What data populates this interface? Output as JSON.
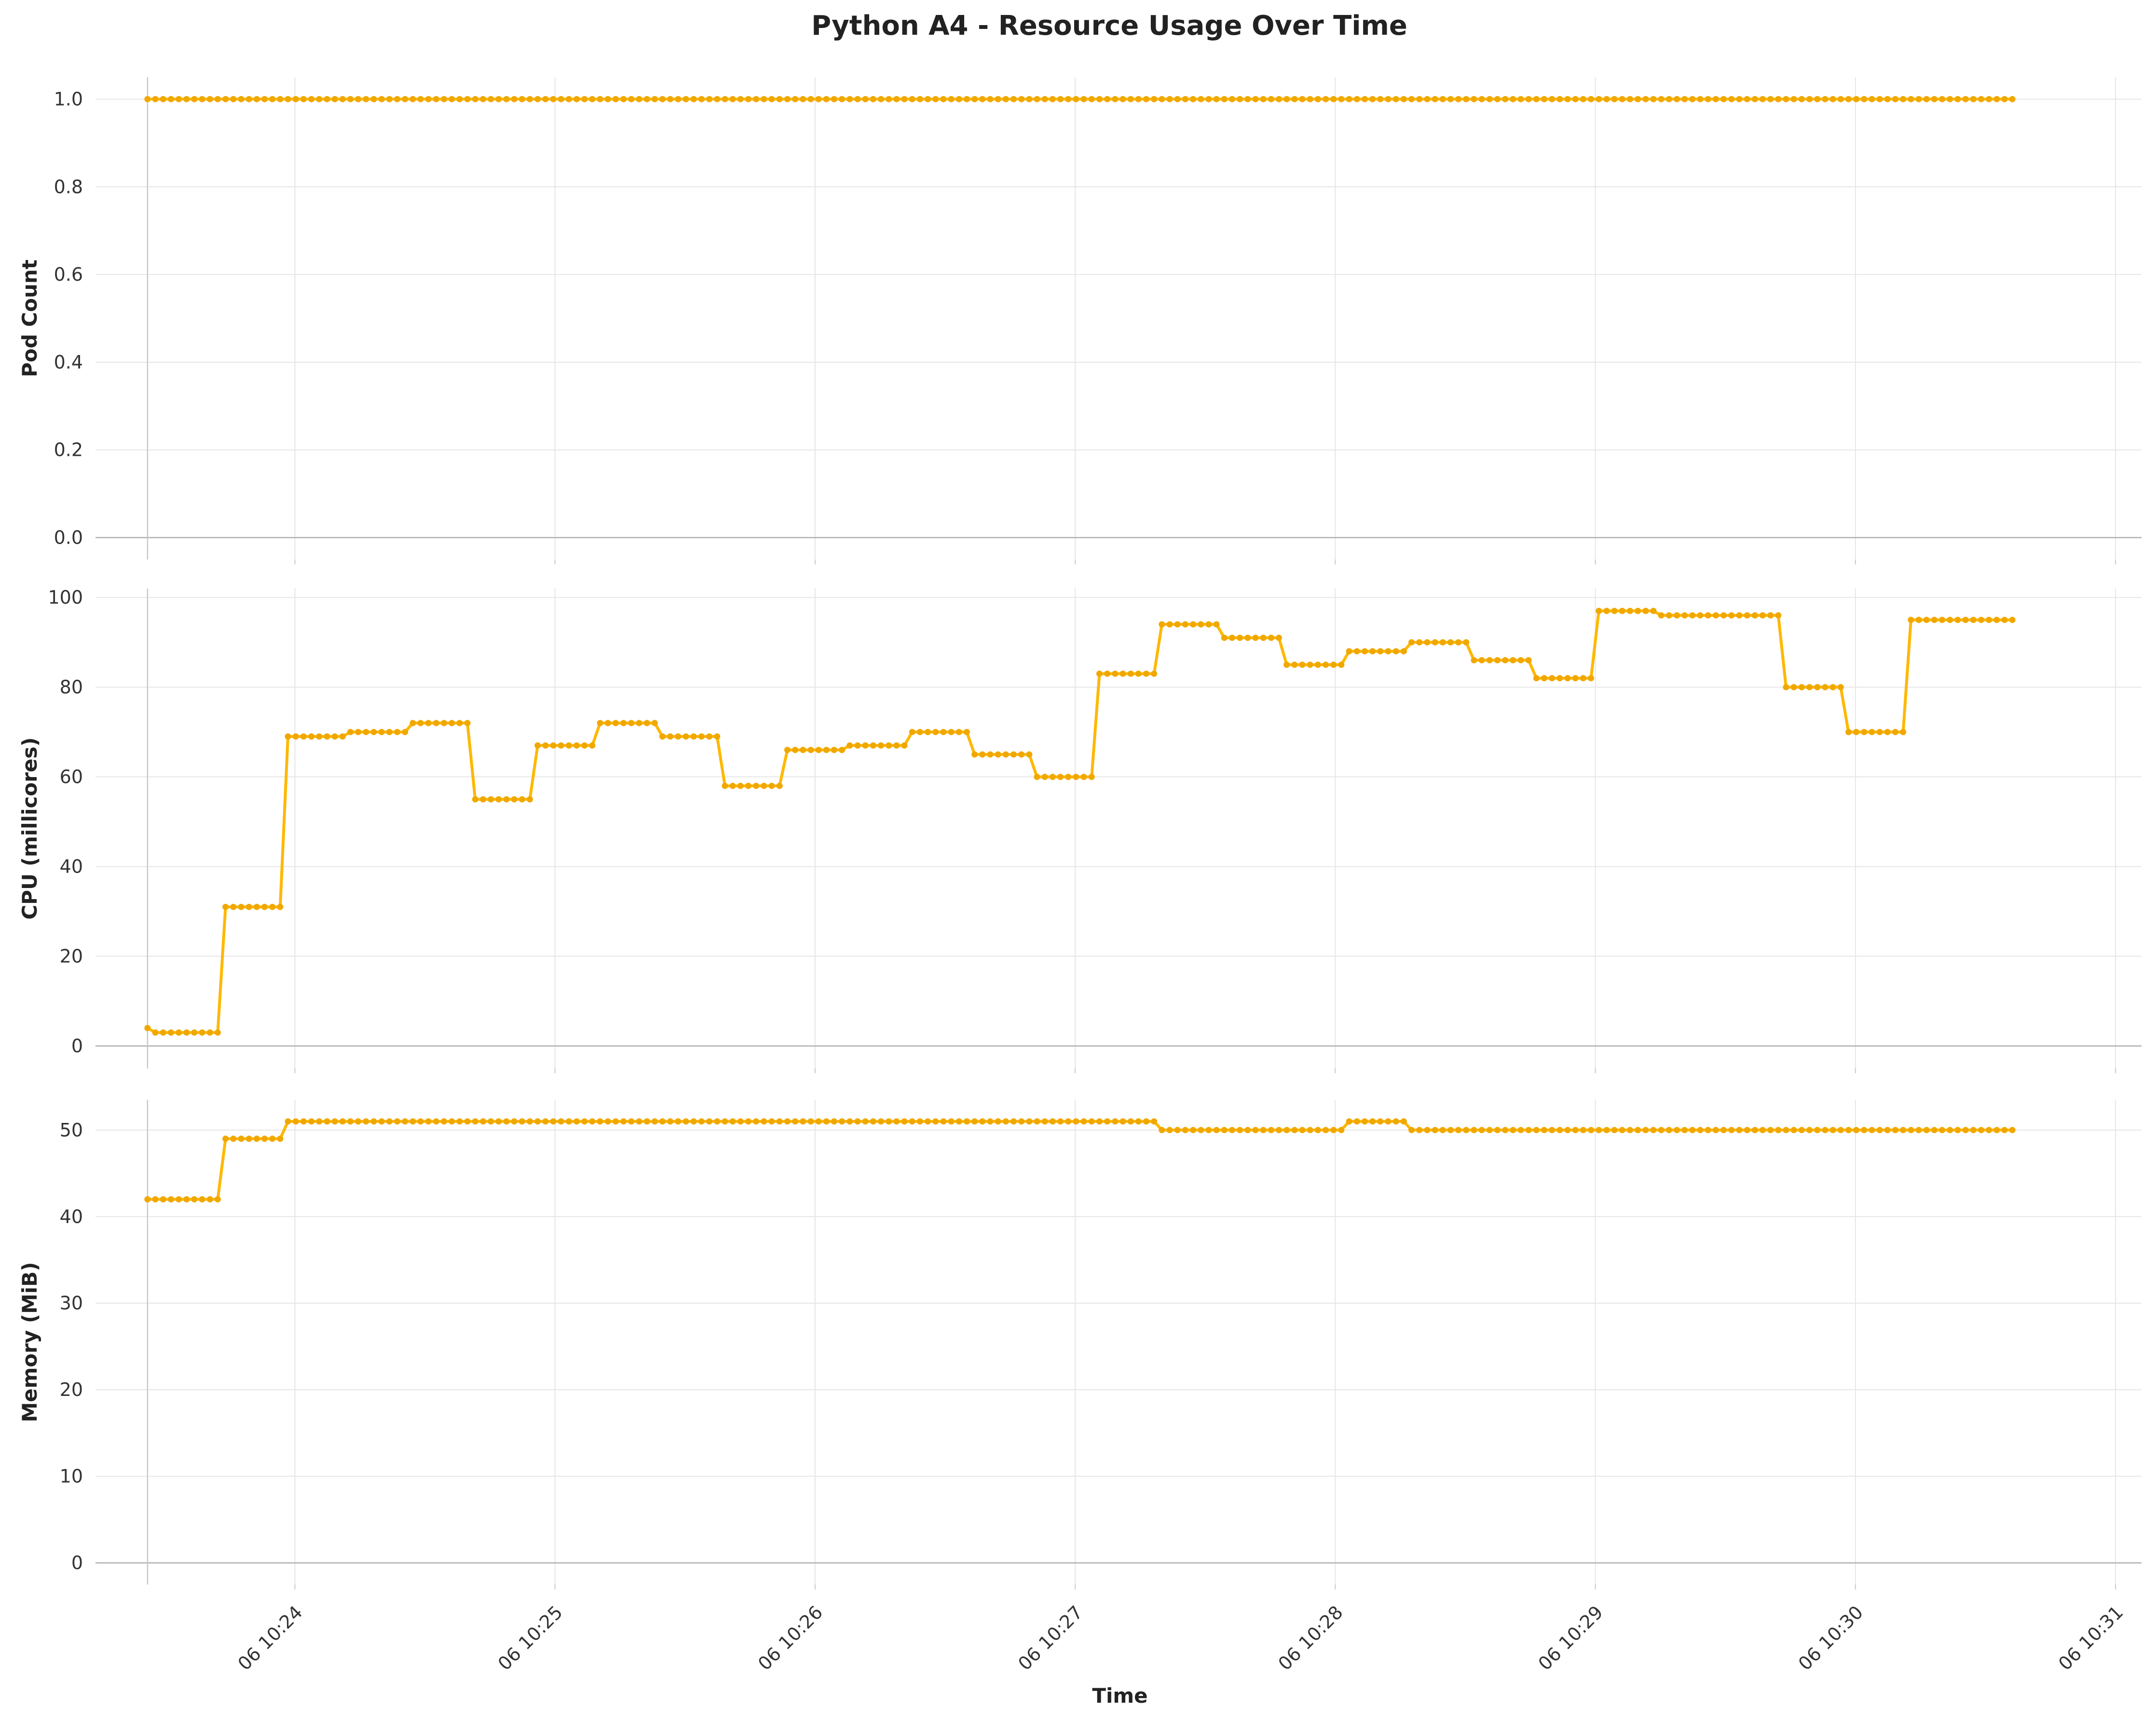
{
  "title": "Python A4 - Resource Usage Over Time",
  "line_color": "#FFB800",
  "marker_color": "#F0A800",
  "chart_data": [
    {
      "type": "line",
      "title": "",
      "xlabel": "",
      "ylabel": "Pod Count",
      "ylim": [
        -0.05,
        1.05
      ],
      "yticks": [
        0.0,
        0.2,
        0.4,
        0.6,
        0.8,
        1.0
      ],
      "ytick_labels": [
        "0.0",
        "0.2",
        "0.4",
        "0.6",
        "0.8",
        "1.0"
      ],
      "grid": true,
      "segments": [
        [
          0,
          1.0
        ]
      ]
    },
    {
      "type": "line",
      "title": "",
      "xlabel": "",
      "ylabel": "CPU (millicores)",
      "ylim": [
        -5,
        102
      ],
      "yticks": [
        0,
        20,
        40,
        60,
        80,
        100
      ],
      "ytick_labels": [
        "0",
        "20",
        "40",
        "60",
        "80",
        "100"
      ],
      "grid": true,
      "segments": [
        [
          0,
          4
        ],
        [
          1,
          3
        ],
        [
          10,
          31
        ],
        [
          18,
          69
        ],
        [
          26,
          70
        ],
        [
          34,
          72
        ],
        [
          42,
          55
        ],
        [
          50,
          67
        ],
        [
          58,
          72
        ],
        [
          66,
          69
        ],
        [
          74,
          58
        ],
        [
          82,
          66
        ],
        [
          90,
          67
        ],
        [
          98,
          70
        ],
        [
          106,
          65
        ],
        [
          114,
          60
        ],
        [
          122,
          83
        ],
        [
          130,
          94
        ],
        [
          138,
          91
        ],
        [
          146,
          85
        ],
        [
          154,
          88
        ],
        [
          162,
          90
        ],
        [
          170,
          86
        ],
        [
          178,
          82
        ],
        [
          186,
          97
        ],
        [
          194,
          96
        ],
        [
          210,
          80
        ],
        [
          218,
          70
        ],
        [
          226,
          95
        ]
      ]
    },
    {
      "type": "line",
      "title": "",
      "xlabel": "Time",
      "ylabel": "Memory (MiB)",
      "ylim": [
        -2.5,
        53.5
      ],
      "yticks": [
        0,
        10,
        20,
        30,
        40,
        50
      ],
      "ytick_labels": [
        "0",
        "10",
        "20",
        "30",
        "40",
        "50"
      ],
      "grid": true,
      "segments": [
        [
          0,
          42
        ],
        [
          10,
          49
        ],
        [
          18,
          51
        ],
        [
          130,
          50
        ],
        [
          154,
          51
        ],
        [
          162,
          50
        ]
      ]
    }
  ],
  "x_axis": {
    "n_points": 240,
    "start_time": "06 10:23:26",
    "step_seconds": 1.8,
    "range": [
      "06 10:23:14",
      "06 10:31:06"
    ],
    "tick_times": [
      "06 10:24:00",
      "06 10:25:00",
      "06 10:26:00",
      "06 10:27:00",
      "06 10:28:00",
      "06 10:29:00",
      "06 10:30:00",
      "06 10:31:00"
    ],
    "tick_labels": [
      "06 10:24",
      "06 10:25",
      "06 10:26",
      "06 10:27",
      "06 10:28",
      "06 10:29",
      "06 10:30",
      "06 10:31"
    ]
  }
}
